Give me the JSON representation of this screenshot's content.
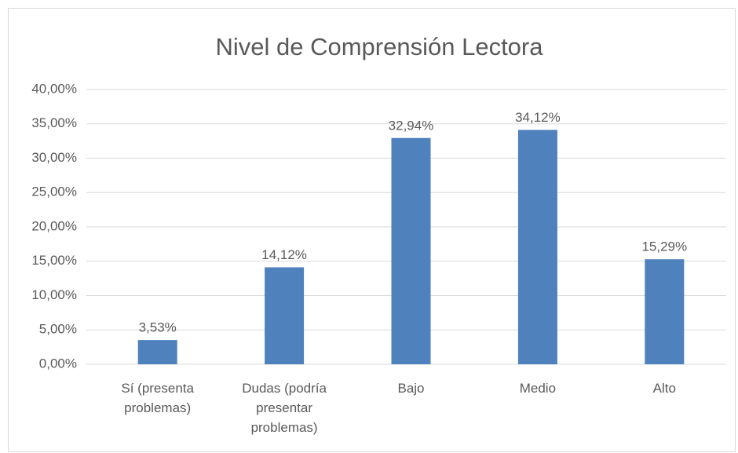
{
  "chart_data": {
    "type": "bar",
    "title": "Nivel de Comprensión Lectora",
    "categories": [
      "Sí (presenta problemas)",
      "Dudas (podría presentar problemas)",
      "Bajo",
      "Medio",
      "Alto"
    ],
    "values": [
      3.53,
      14.12,
      32.94,
      34.12,
      15.29
    ],
    "value_labels": [
      "3,53%",
      "14,12%",
      "32,94%",
      "34,12%",
      "15,29%"
    ],
    "color": "#4f81bd",
    "ylim": [
      0,
      40
    ],
    "yticks": [
      {
        "value": 0,
        "label": "0,00%"
      },
      {
        "value": 5,
        "label": "5,00%"
      },
      {
        "value": 10,
        "label": "10,00%"
      },
      {
        "value": 15,
        "label": "15,00%"
      },
      {
        "value": 20,
        "label": "20,00%"
      },
      {
        "value": 25,
        "label": "25,00%"
      },
      {
        "value": 30,
        "label": "30,00%"
      },
      {
        "value": 35,
        "label": "35,00%"
      },
      {
        "value": 40,
        "label": "40,00%"
      }
    ],
    "grid": true
  }
}
